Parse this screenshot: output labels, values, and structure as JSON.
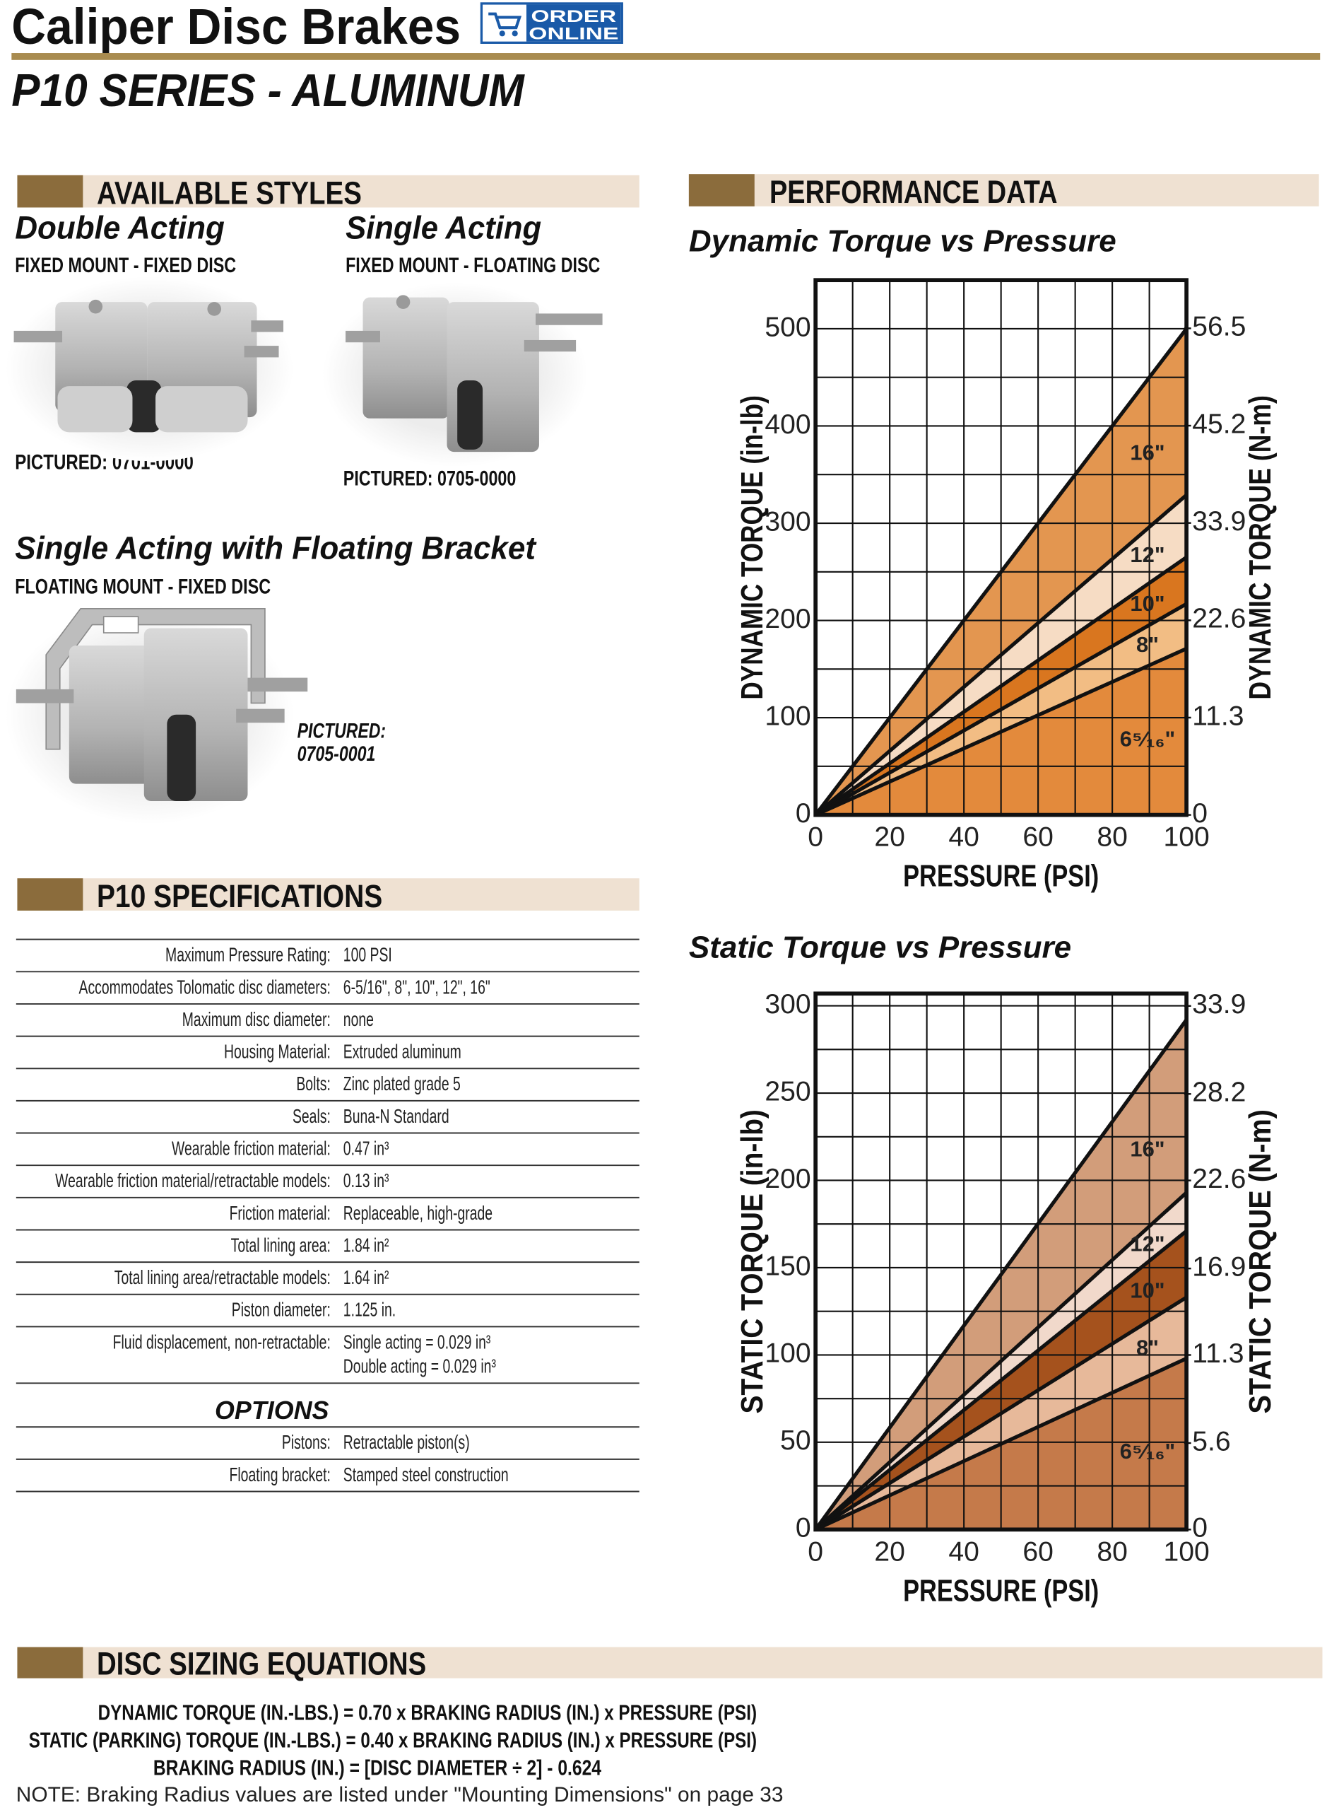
{
  "header": {
    "title": "Caliper Disc Brakes",
    "badge": [
      "ORDER",
      "ONLINE"
    ],
    "subtitle": "P10 SERIES - ALUMINUM"
  },
  "styles": {
    "heading": "AVAILABLE STYLES",
    "items": [
      {
        "name": "Double Acting",
        "mount": "FIXED MOUNT - FIXED DISC",
        "pictured": [
          "PICTURED:  0701-0000"
        ]
      },
      {
        "name": "Single Acting",
        "mount": "FIXED MOUNT - FLOATING DISC",
        "pictured": [
          "PICTURED: 0705-0000"
        ]
      },
      {
        "name": "Single Acting with Floating Bracket",
        "mount": "FLOATING MOUNT - FIXED DISC",
        "pictured": [
          "PICTURED:",
          "0705-0001"
        ]
      }
    ]
  },
  "specifications": {
    "heading": "P10 SPECIFICATIONS",
    "rows": [
      {
        "label": "Maximum Pressure Rating:",
        "value": "100 PSI"
      },
      {
        "label": "Accommodates Tolomatic disc diameters:",
        "value": "6-5/16\", 8\", 10\", 12\", 16\""
      },
      {
        "label": "Maximum disc diameter:",
        "value": "none"
      },
      {
        "label": "Housing Material:",
        "value": "Extruded aluminum"
      },
      {
        "label": "Bolts:",
        "value": "Zinc plated grade 5"
      },
      {
        "label": "Seals:",
        "value": "Buna-N Standard"
      },
      {
        "label": "Wearable friction material:",
        "value": "0.47 in³"
      },
      {
        "label": "Wearable friction material/retractable models:",
        "value": "0.13 in³"
      },
      {
        "label": "Friction material:",
        "value": "Replaceable, high-grade"
      },
      {
        "label": "Total lining area:",
        "value": "1.84 in²"
      },
      {
        "label": "Total lining area/retractable models:",
        "value": "1.64 in²"
      },
      {
        "label": "Piston diameter:",
        "value": "1.125 in."
      },
      {
        "label": "Fluid displacement, non-retractable:",
        "value": [
          "Single acting = 0.029 in³",
          "Double acting = 0.029 in³"
        ]
      }
    ],
    "options_heading": "OPTIONS",
    "options": [
      {
        "label": "Pistons:",
        "value": "Retractable piston(s)"
      },
      {
        "label": "Floating bracket:",
        "value": "Stamped steel construction"
      }
    ]
  },
  "performance": {
    "heading": "PERFORMANCE DATA",
    "charts": [
      {
        "type": "area",
        "title": "Dynamic Torque vs Pressure",
        "x_label": "PRESSURE (PSI)",
        "y_label": "DYNAMIC TORQUE (in-lb)",
        "y2_label": "DYNAMIC TORQUE (N-m)",
        "x": [
          0,
          100
        ],
        "series": [
          {
            "name": "16\"",
            "color": "#e39650",
            "values": [
              0,
              500
            ]
          },
          {
            "name": "12\"",
            "color": "#f6dcc4",
            "values": [
              0,
              329
            ]
          },
          {
            "name": "10\"",
            "color": "#d9761f",
            "values": [
              0,
              265
            ]
          },
          {
            "name": "8\"",
            "color": "#f2bd84",
            "values": [
              0,
              217
            ]
          },
          {
            "name": "6⁵⁄₁₆\"",
            "color": "#e38a3c",
            "values": [
              0,
              171
            ]
          }
        ],
        "xlim": [
          0,
          100
        ],
        "xticks": [
          0,
          20,
          40,
          60,
          80,
          100
        ],
        "ylim": [
          0,
          550
        ],
        "yticks": [
          0,
          100,
          200,
          300,
          400,
          500
        ],
        "y2lim": [
          0,
          62.1
        ],
        "y2ticks": [
          0,
          11.3,
          22.6,
          33.9,
          45.2,
          56.5
        ],
        "x_grid": [
          10,
          20,
          30,
          40,
          50,
          60,
          70,
          80,
          90
        ],
        "y_grid": [
          50,
          100,
          150,
          200,
          250,
          300,
          350,
          400,
          450,
          500
        ]
      },
      {
        "type": "area",
        "title": "Static Torque vs Pressure",
        "x_label": "PRESSURE (PSI)",
        "y_label": "STATIC TORQUE (in-lb)",
        "y2_label": "STATIC TORQUE (N-m)",
        "x": [
          0,
          100
        ],
        "series": [
          {
            "name": "16\"",
            "color": "#d29d7a",
            "values": [
              0,
              292
            ]
          },
          {
            "name": "12\"",
            "color": "#f1d9cb",
            "values": [
              0,
              193
            ]
          },
          {
            "name": "10\"",
            "color": "#a5521d",
            "values": [
              0,
              171
            ]
          },
          {
            "name": "8\"",
            "color": "#e7b99a",
            "values": [
              0,
              133
            ]
          },
          {
            "name": "6⁵⁄₁₆\"",
            "color": "#c57a4a",
            "values": [
              0,
              98
            ]
          }
        ],
        "xlim": [
          0,
          100
        ],
        "xticks": [
          0,
          20,
          40,
          60,
          80,
          100
        ],
        "ylim": [
          0,
          307
        ],
        "yticks": [
          0,
          50,
          100,
          150,
          200,
          250,
          300
        ],
        "y2lim": [
          0,
          34.7
        ],
        "y2ticks": [
          0,
          5.6,
          11.3,
          16.9,
          22.6,
          28.2,
          33.9
        ],
        "x_grid": [
          10,
          20,
          30,
          40,
          50,
          60,
          70,
          80,
          90
        ],
        "y_grid": [
          25,
          50,
          75,
          100,
          125,
          150,
          175,
          200,
          225,
          250,
          275,
          300
        ]
      }
    ]
  },
  "equations": {
    "heading": "DISC SIZING EQUATIONS",
    "lines": [
      "DYNAMIC TORQUE (IN.-LBS.) = 0.70 x BRAKING RADIUS (IN.) x PRESSURE (PSI)",
      "STATIC (PARKING) TORQUE (IN.-LBS.) = 0.40 x BRAKING RADIUS (IN.) x PRESSURE (PSI)",
      "BRAKING RADIUS (IN.) = [DISC DIAMETER ÷ 2] - 0.624"
    ],
    "note": "NOTE: Braking Radius values are listed under \"Mounting Dimensions\" on page 33"
  }
}
